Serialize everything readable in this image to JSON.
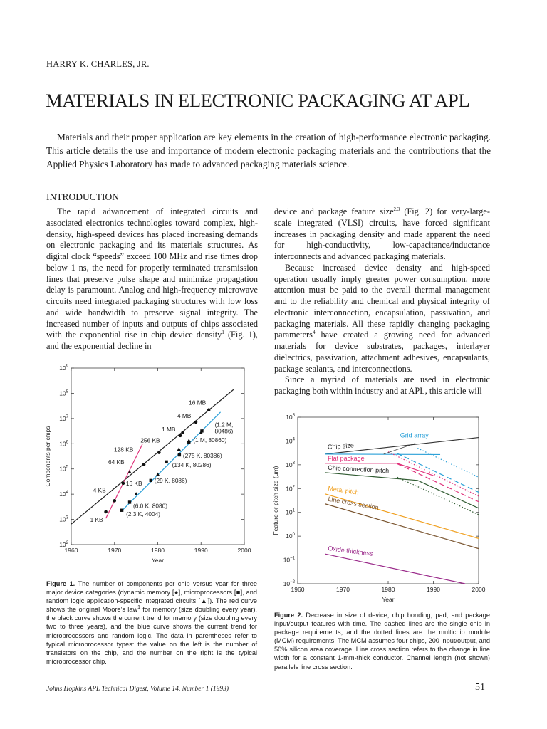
{
  "author": "HARRY K. CHARLES, JR.",
  "title": "MATERIALS IN ELECTRONIC PACKAGING AT APL",
  "abstract": "Materials and their proper application are key elements in the creation of high-performance electronic packaging. This article details the use and importance of modern electronic packaging materials and the contributions that the Applied Physics Laboratory has made to advanced packaging materials science.",
  "section_heading": "INTRODUCTION",
  "left_column": {
    "p1a": "The rapid advancement of integrated circuits and associated electronics technologies toward complex, high-density, high-speed devices has placed increasing demands on electronic packaging and its materials structures. As digital clock “speeds” exceed 100 MHz and rise times drop below 1 ns, the need for properly terminated transmission lines that preserve pulse shape and minimize propagation delay is paramount. Analog and high-frequency microwave circuits need integrated packaging structures with low loss and wide bandwidth to preserve signal integrity. The increased number of inputs and outputs of chips associated with the exponential rise in chip device density",
    "p1a_sup": "1",
    "p1b": " (Fig. 1), and the exponential decline in"
  },
  "right_column": {
    "p1a": "device and package feature size",
    "p1a_sup": "2,3",
    "p1b": " (Fig. 2) for very-large-scale integrated (VLSI) circuits, have forced significant increases in packaging density and made apparent the need for high-conductivity, low-capacitance/inductance interconnects and advanced packaging materials.",
    "p2": "Because increased device density and high-speed operation usually imply greater power consumption, more attention must be paid to the overall thermal management and to the reliability and chemical and physical integrity of electronic interconnection, encapsulation, passivation, and packaging materials. All these rapidly changing packaging parameters",
    "p2_sup": "4",
    "p2b": " have created a growing need for advanced materials for device substrates, packages, interlayer dielectrics, passivation, attachment adhesives, encapsulants, package sealants, and interconnections.",
    "p3": "Since a myriad of materials are used in electronic packaging both within industry and at APL, this article will"
  },
  "figure1_caption": {
    "label": "Figure 1.",
    "text_a": " The number of components per chip versus year for three major device categories (dynamic memory [●], microprocessors [■], and random logic application-specific integrated circuits [▲]). The red curve shows the original Moore’s law",
    "sup": "1",
    "text_b": " for memory (size doubling every year), the black curve shows the current trend for memory (size doubling every two to three years), and the blue curve shows the current trend for microprocessors and random logic. The data in parentheses refer to typical microprocessor types: the value on the left is the number of transistors on the chip, and the number on the right is the typical microprocessor chip."
  },
  "figure2_caption": {
    "label": "Figure 2.",
    "text": " Decrease in size of device, chip bonding, pad, and package input/output features with time. The dashed lines are the single chip in package requirements, and the dotted lines are the multichip module (MCM) requirements. The MCM assumes four chips, 200 input/output, and 50% silicon area coverage. Line cross section refers to the change in line width for a constant 1-mm-thick conductor. Channel length (not shown) parallels line cross section."
  },
  "footer": "Johns Hopkins APL Technical Digest, Volume 14, Number 1 (1993)",
  "page_number": "51",
  "chart_data": [
    {
      "type": "scatter",
      "xlabel": "Year",
      "ylabel": "Components per chips",
      "xlim": [
        1960,
        2000
      ],
      "ylim": [
        100,
        1000000000
      ],
      "yscale": "log",
      "xticks": [
        "1960",
        "1970",
        "1980",
        "1990",
        "2000"
      ],
      "yticks": [
        "10^2",
        "10^3",
        "10^4",
        "10^5",
        "10^6",
        "10^7",
        "10^8",
        "10^9"
      ],
      "grid": false,
      "colors": {
        "memory": "#222222",
        "moore": "#e0307a",
        "micro": "#2aa0d8"
      },
      "lines": [
        {
          "key": "memory",
          "points": [
            [
              1960,
              650
            ],
            [
              1997.5,
              140000000
            ]
          ]
        },
        {
          "key": "moore",
          "points": [
            [
              1968,
              1100
            ],
            [
              1976.5,
              1000000
            ]
          ]
        },
        {
          "key": "micro",
          "points": [
            [
              1971.7,
              2200
            ],
            [
              1994.5,
              18000000
            ]
          ]
        }
      ],
      "memory_points": [
        [
          1968,
          2000
        ],
        [
          1970,
          5500
        ],
        [
          1972,
          27000
        ],
        [
          1976.8,
          150000
        ],
        [
          1980.3,
          450000
        ],
        [
          1985.2,
          2100000
        ],
        [
          1985.8,
          2800000
        ],
        [
          1988.8,
          7200000
        ],
        [
          1991.8,
          22000000
        ]
      ],
      "microprocessor_points": [
        [
          1971.7,
          2300
        ],
        [
          1973.5,
          4800
        ],
        [
          1978.4,
          35000
        ],
        [
          1982,
          190000
        ],
        [
          1985,
          360000
        ],
        [
          1987.2,
          1100000
        ],
        [
          1990.2,
          3200000
        ]
      ],
      "logic_points": [
        [
          1973.5,
          75000
        ],
        [
          1975,
          10000
        ],
        [
          1980,
          60000
        ],
        [
          1984.9,
          600000
        ],
        [
          1987.2,
          1300000
        ],
        [
          1990,
          2700000
        ]
      ],
      "annotations": [
        {
          "text": "1 KB",
          "at": [
            1968,
            2000
          ]
        },
        {
          "text": "4 KB",
          "at": [
            1970,
            5500
          ]
        },
        {
          "text": "16 KB",
          "at": [
            1972,
            27000
          ]
        },
        {
          "text": "64 KB",
          "at": [
            1973.5,
            75000
          ]
        },
        {
          "text": "128 KB",
          "at": [
            1976.8,
            150000
          ]
        },
        {
          "text": "256 KB",
          "at": [
            1980.3,
            450000
          ]
        },
        {
          "text": "1 MB",
          "at": [
            1985.2,
            2100000
          ]
        },
        {
          "text": "4 MB",
          "at": [
            1988.8,
            7200000
          ]
        },
        {
          "text": "16 MB",
          "at": [
            1991.8,
            22000000
          ]
        },
        {
          "text": "(2.3 K, 4004)",
          "at": [
            1971.7,
            2300
          ]
        },
        {
          "text": "(6.0 K, 8080)",
          "at": [
            1973.5,
            4800
          ]
        },
        {
          "text": "(29 K, 8086)",
          "at": [
            1978.4,
            35000
          ]
        },
        {
          "text": "(134 K, 80286)",
          "at": [
            1982,
            190000
          ]
        },
        {
          "text": "(275 K, 80386)",
          "at": [
            1985,
            360000
          ]
        },
        {
          "text": "(1 M, 80860)",
          "at": [
            1987.2,
            1100000
          ]
        },
        {
          "text": "(1.2 M,",
          "at": [
            1990.2,
            3200000
          ]
        },
        {
          "text": "80486)",
          "at": [
            1990.2,
            3200000
          ]
        }
      ]
    },
    {
      "type": "line",
      "xlabel": "Year",
      "ylabel": "Feature or pitch size (μm)",
      "xlim": [
        1960,
        2000
      ],
      "ylim": [
        0.01,
        100000
      ],
      "yscale": "log",
      "xticks": [
        "1960",
        "1970",
        "1980",
        "1990",
        "2000"
      ],
      "yticks": [
        "10^-2",
        "10^-1",
        "10^0",
        "10^1",
        "10^2",
        "10^3",
        "10^4",
        "10^5"
      ],
      "grid": false,
      "series": [
        {
          "name": "Chip size",
          "color": "#333333",
          "style": "solid",
          "points": [
            [
              1966,
              2800
            ],
            [
              2000,
              14000
            ]
          ]
        },
        {
          "name": "Grid array",
          "color": "#2aa0d8",
          "style": "solid",
          "points": [
            [
              1966,
              2800
            ],
            [
              1991.5,
              2700
            ]
          ]
        },
        {
          "name": "Flat package",
          "color": "#e0307a",
          "style": "solid",
          "points": [
            [
              1966,
              1150
            ],
            [
              1982,
              1150
            ],
            [
              1990,
              350
            ]
          ]
        },
        {
          "name": "Chip connection pitch",
          "color": "#2f5a30",
          "style": "solid",
          "points": [
            [
              1966,
              470
            ],
            [
              1986.5,
              220
            ],
            [
              2000,
              15
            ]
          ]
        },
        {
          "name": "Metal pitch",
          "color": "#f0a020",
          "style": "solid",
          "points": [
            [
              1966,
              60
            ],
            [
              2000,
              0.8
            ]
          ]
        },
        {
          "name": "Line cross section",
          "color": "#7a5530",
          "style": "solid",
          "points": [
            [
              1966,
              23
            ],
            [
              2000,
              0.3
            ]
          ]
        },
        {
          "name": "Oxide thickness",
          "color": "#9a2a8a",
          "style": "solid",
          "points": [
            [
              1966,
              0.18
            ],
            [
              1997,
              0.01
            ]
          ]
        },
        {
          "color": "#2aa0d8",
          "style": "dashed",
          "points": [
            [
              1982,
              3000
            ],
            [
              2000,
              70
            ]
          ]
        },
        {
          "color": "#e0307a",
          "style": "dashed",
          "points": [
            [
              1982,
              1100
            ],
            [
              2000,
              28
            ]
          ]
        },
        {
          "color": "#2aa0d8",
          "style": "dotted",
          "points": [
            [
              1986.5,
              5000
            ],
            [
              2000,
              300
            ]
          ]
        },
        {
          "color": "#e0307a",
          "style": "dotted",
          "points": [
            [
              1980,
              3500
            ],
            [
              2000,
              48
            ]
          ]
        },
        {
          "color": "#2f5a30",
          "style": "dotted",
          "points": [
            [
              1982,
              300
            ],
            [
              2000,
              8
            ]
          ]
        }
      ]
    }
  ]
}
